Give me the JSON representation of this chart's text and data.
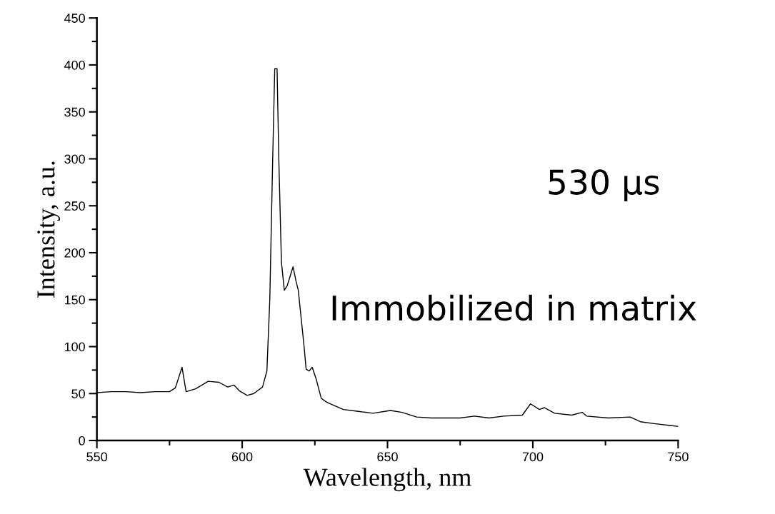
{
  "chart_data": {
    "type": "line",
    "xlabel": "Wavelength, nm",
    "ylabel": "Intensity, a.u.",
    "annotations": [
      "530 µs",
      "Immobilized in matrix"
    ],
    "x": [
      550,
      555,
      560,
      565,
      570,
      575,
      577,
      579.3,
      580.7,
      584,
      588.3,
      592,
      595,
      597.2,
      599,
      601.7,
      604,
      607,
      608.5,
      609.5,
      610.5,
      611.2,
      612,
      612.6,
      613.5,
      614.5,
      615.5,
      617.5,
      618.5,
      619.3,
      620.3,
      621.3,
      622,
      623,
      624.1,
      625.5,
      627.2,
      628.5,
      629.6,
      634.8,
      640,
      645,
      651,
      655,
      660,
      665,
      668.5,
      675,
      679.9,
      685,
      690,
      696.4,
      699.2,
      702.3,
      704,
      707.5,
      713.4,
      717,
      718.5,
      726,
      733.5,
      737,
      741.7,
      747.2,
      750
    ],
    "series": [
      {
        "color": "#000000",
        "values": [
          51,
          52,
          52,
          51,
          52,
          52,
          56,
          78,
          52,
          55,
          63,
          62,
          57,
          59,
          53,
          48,
          50,
          57,
          74,
          150,
          300,
          396,
          396,
          300,
          190,
          160,
          165,
          185,
          170,
          160,
          130,
          100,
          76,
          74,
          78,
          65,
          45,
          42,
          40,
          33,
          31,
          29,
          32,
          30,
          25,
          24,
          24,
          24,
          26,
          24,
          26,
          27,
          39,
          33,
          35,
          29,
          27,
          30,
          26,
          24,
          25,
          20,
          18,
          16,
          15
        ]
      }
    ],
    "xlim": [
      550,
      750
    ],
    "xticks": [
      550,
      600,
      650,
      700,
      750
    ],
    "ylim": [
      0,
      450
    ],
    "yticks": [
      0,
      50,
      100,
      150,
      200,
      250,
      300,
      350,
      400,
      450
    ],
    "grid": false,
    "legend": false,
    "marker": "none",
    "line_style": "solid"
  }
}
